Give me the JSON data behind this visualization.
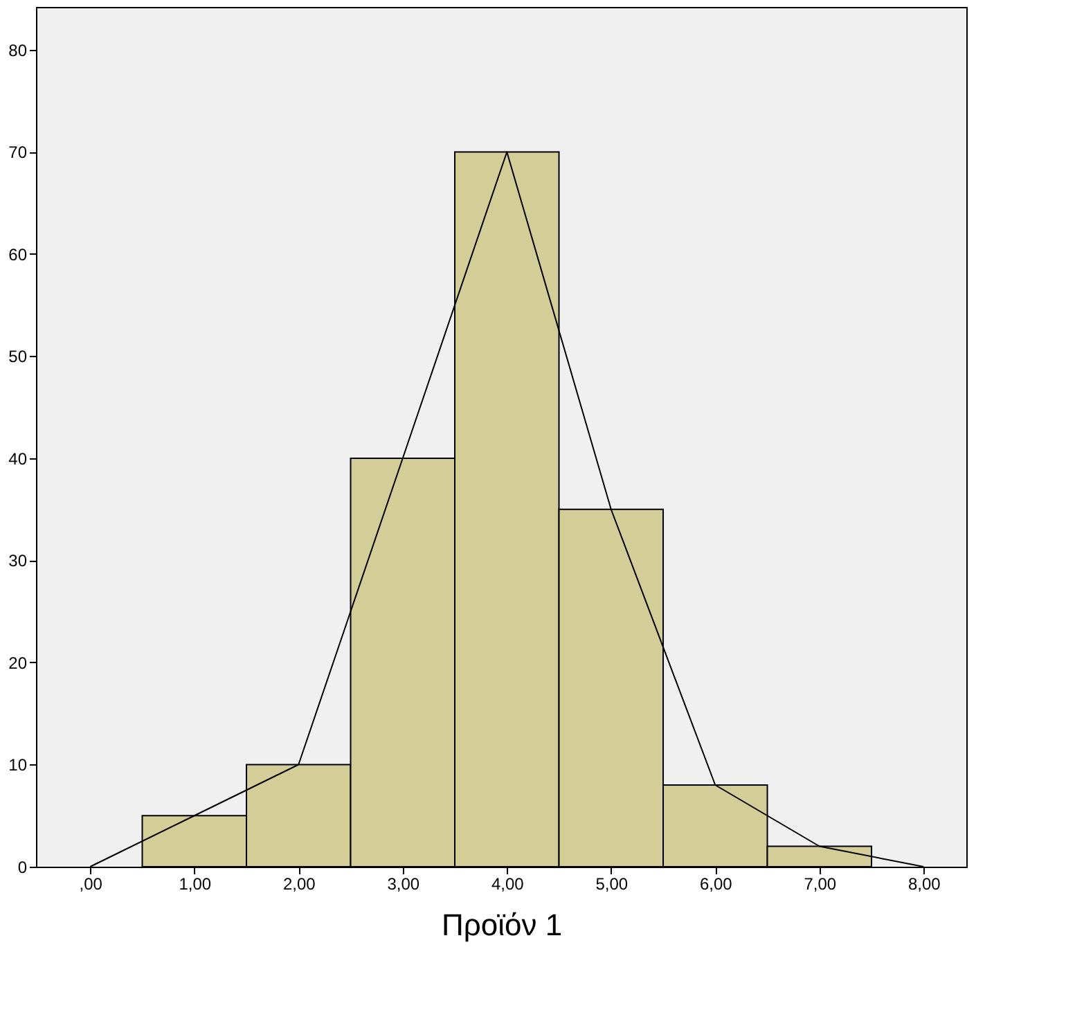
{
  "chart_data": {
    "type": "histogram",
    "xlabel": "Προϊόν 1",
    "bins": [
      0.5,
      1.5,
      2.5,
      3.5,
      4.5,
      5.5,
      6.5,
      7.5
    ],
    "series": [
      {
        "color": "#d3ce97",
        "values": [
          5,
          10,
          40,
          70,
          35,
          8,
          2
        ]
      },
      {
        "type": "line",
        "color": "#000000",
        "x": [
          0,
          1,
          2,
          3,
          4,
          5,
          6,
          7,
          8
        ],
        "values": [
          0,
          5,
          10,
          40,
          70,
          35,
          8,
          2,
          0
        ]
      }
    ],
    "xlim": [
      -0.52,
      8.41
    ],
    "ylim": [
      0,
      84.2
    ],
    "xticks": [
      {
        "value": 0,
        "label": ",00"
      },
      {
        "value": 1,
        "label": "1,00"
      },
      {
        "value": 2,
        "label": "2,00"
      },
      {
        "value": 3,
        "label": "3,00"
      },
      {
        "value": 4,
        "label": "4,00"
      },
      {
        "value": 5,
        "label": "5,00"
      },
      {
        "value": 6,
        "label": "6,00"
      },
      {
        "value": 7,
        "label": "7,00"
      },
      {
        "value": 8,
        "label": "8,00"
      }
    ],
    "yticks": [
      0,
      10,
      20,
      30,
      40,
      50,
      60,
      70,
      80
    ],
    "grid": false,
    "marker": "none",
    "line_style": "solid"
  }
}
